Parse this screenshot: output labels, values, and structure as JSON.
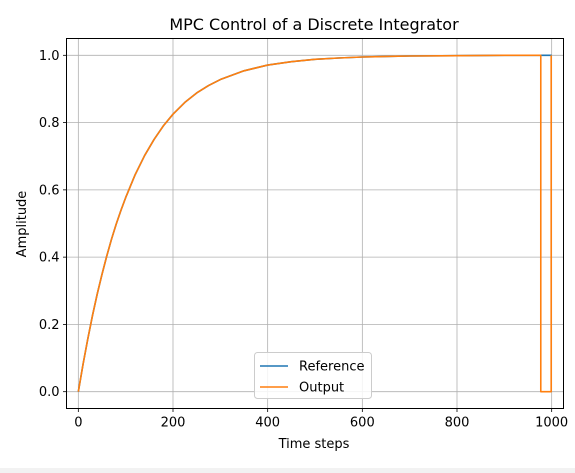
{
  "chart_data": {
    "type": "line",
    "title": "MPC Control of a Discrete Integrator",
    "xlabel": "Time steps",
    "ylabel": "Amplitude",
    "xlim": [
      -25,
      1025
    ],
    "ylim": [
      -0.05,
      1.05
    ],
    "xticks": [
      0,
      200,
      400,
      600,
      800,
      1000
    ],
    "yticks": [
      0.0,
      0.2,
      0.4,
      0.6,
      0.8,
      1.0
    ],
    "xtick_labels": [
      "0",
      "200",
      "400",
      "600",
      "800",
      "1000"
    ],
    "ytick_labels": [
      "0.0",
      "0.2",
      "0.4",
      "0.6",
      "0.8",
      "1.0"
    ],
    "grid": true,
    "legend_position": "lower-center",
    "series": [
      {
        "name": "Reference",
        "color": "#1f77b4",
        "x": [
          0,
          10,
          20,
          30,
          40,
          50,
          60,
          70,
          80,
          90,
          100,
          120,
          140,
          160,
          180,
          200,
          225,
          250,
          275,
          300,
          350,
          400,
          450,
          500,
          550,
          600,
          700,
          800,
          900,
          1000
        ],
        "y": [
          0.0,
          0.082,
          0.157,
          0.227,
          0.291,
          0.349,
          0.403,
          0.453,
          0.498,
          0.539,
          0.577,
          0.645,
          0.702,
          0.75,
          0.791,
          0.825,
          0.86,
          0.888,
          0.91,
          0.928,
          0.954,
          0.971,
          0.981,
          0.988,
          0.992,
          0.995,
          0.998,
          0.999,
          1.0,
          1.0
        ]
      },
      {
        "name": "Output",
        "color": "#ff7f0e",
        "x": [
          0,
          10,
          20,
          30,
          40,
          50,
          60,
          70,
          80,
          90,
          100,
          120,
          140,
          160,
          180,
          200,
          225,
          250,
          275,
          300,
          350,
          400,
          450,
          500,
          550,
          600,
          700,
          800,
          900,
          977,
          977,
          999,
          999
        ],
        "y": [
          0.0,
          0.082,
          0.157,
          0.227,
          0.291,
          0.349,
          0.403,
          0.453,
          0.498,
          0.539,
          0.577,
          0.645,
          0.702,
          0.75,
          0.791,
          0.825,
          0.86,
          0.888,
          0.91,
          0.928,
          0.954,
          0.971,
          0.981,
          0.988,
          0.992,
          0.995,
          0.998,
          0.999,
          1.0,
          1.0,
          0.0,
          0.0,
          1.0
        ]
      }
    ]
  }
}
